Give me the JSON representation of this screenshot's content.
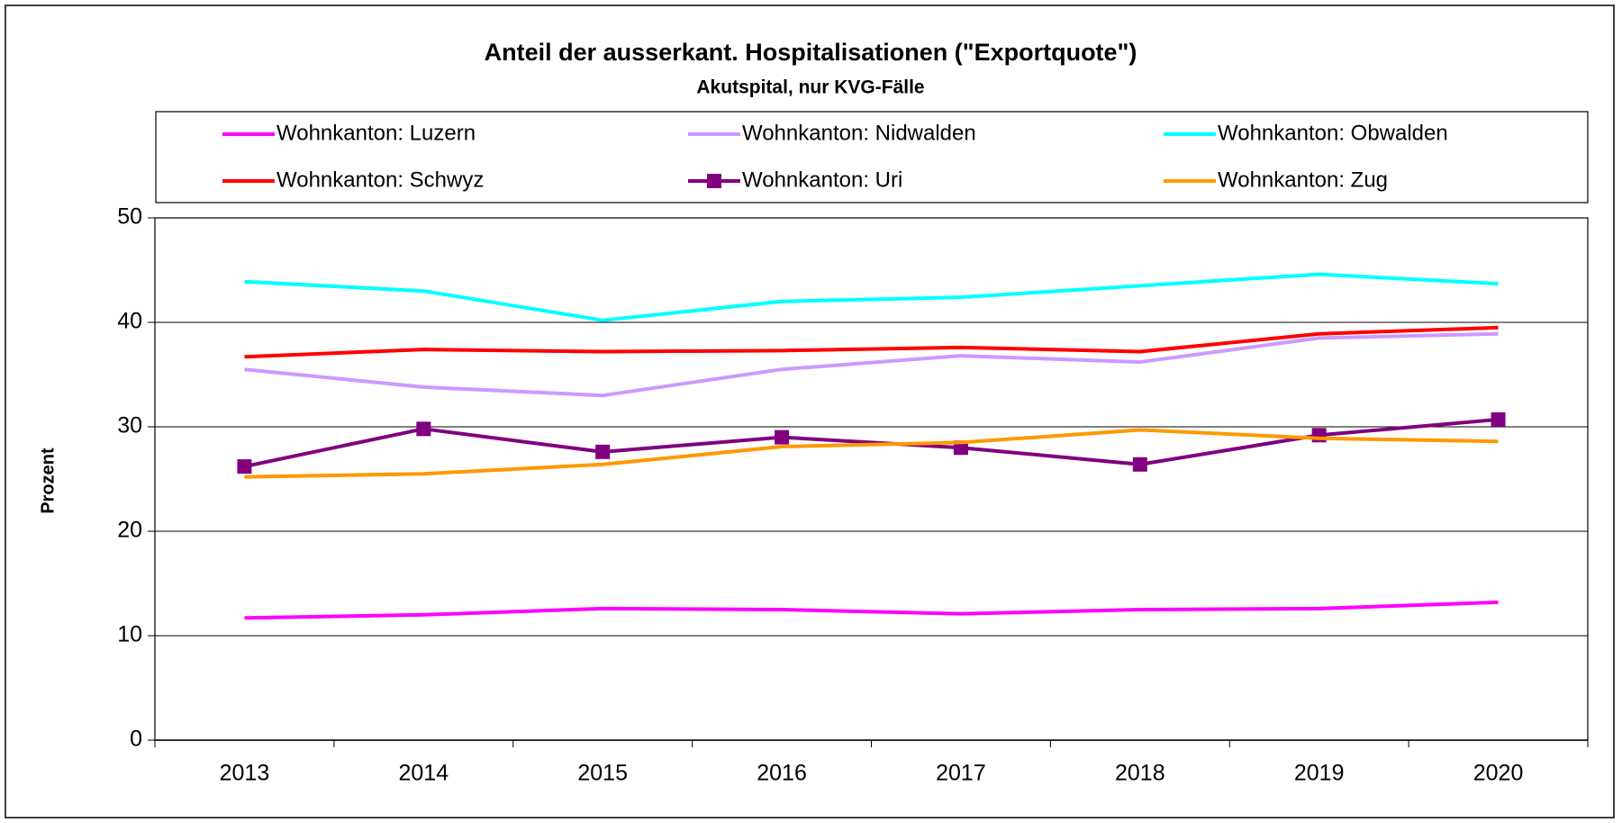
{
  "chart_data": {
    "type": "line",
    "title": "Anteil der ausserkant. Hospitalisationen (\"Exportquote\")",
    "subtitle": "Akutspital, nur KVG-Fälle",
    "y_label": "Prozent",
    "categories": [
      "2013",
      "2014",
      "2015",
      "2016",
      "2017",
      "2018",
      "2019",
      "2020"
    ],
    "series": [
      {
        "name": "Wohnkanton: Luzern",
        "color": "#ff00ff",
        "values": [
          11.7,
          12.0,
          12.6,
          12.5,
          12.1,
          12.5,
          12.6,
          13.2
        ]
      },
      {
        "name": "Wohnkanton: Nidwalden",
        "color": "#cc99ff",
        "values": [
          35.5,
          33.8,
          33.0,
          35.5,
          36.8,
          36.2,
          38.5,
          38.9
        ]
      },
      {
        "name": "Wohnkanton: Obwalden",
        "color": "#00ffff",
        "values": [
          43.9,
          43.0,
          40.2,
          42.0,
          42.4,
          43.5,
          44.6,
          43.7
        ]
      },
      {
        "name": "Wohnkanton: Schwyz",
        "color": "#ff0000",
        "values": [
          36.7,
          37.4,
          37.2,
          37.3,
          37.6,
          37.2,
          38.9,
          39.5
        ]
      },
      {
        "name": "Wohnkanton: Uri",
        "color": "#800080",
        "marker": "square",
        "values": [
          26.2,
          29.8,
          27.6,
          29.0,
          28.0,
          26.4,
          29.2,
          30.7
        ]
      },
      {
        "name": "Wohnkanton: Zug",
        "color": "#ff9900",
        "values": [
          25.2,
          25.5,
          26.4,
          28.1,
          28.5,
          29.7,
          28.9,
          28.6
        ]
      }
    ],
    "ylim": [
      0,
      50
    ],
    "yticks": [
      0,
      10,
      20,
      30,
      40,
      50
    ],
    "grid": true,
    "legend": "top"
  }
}
